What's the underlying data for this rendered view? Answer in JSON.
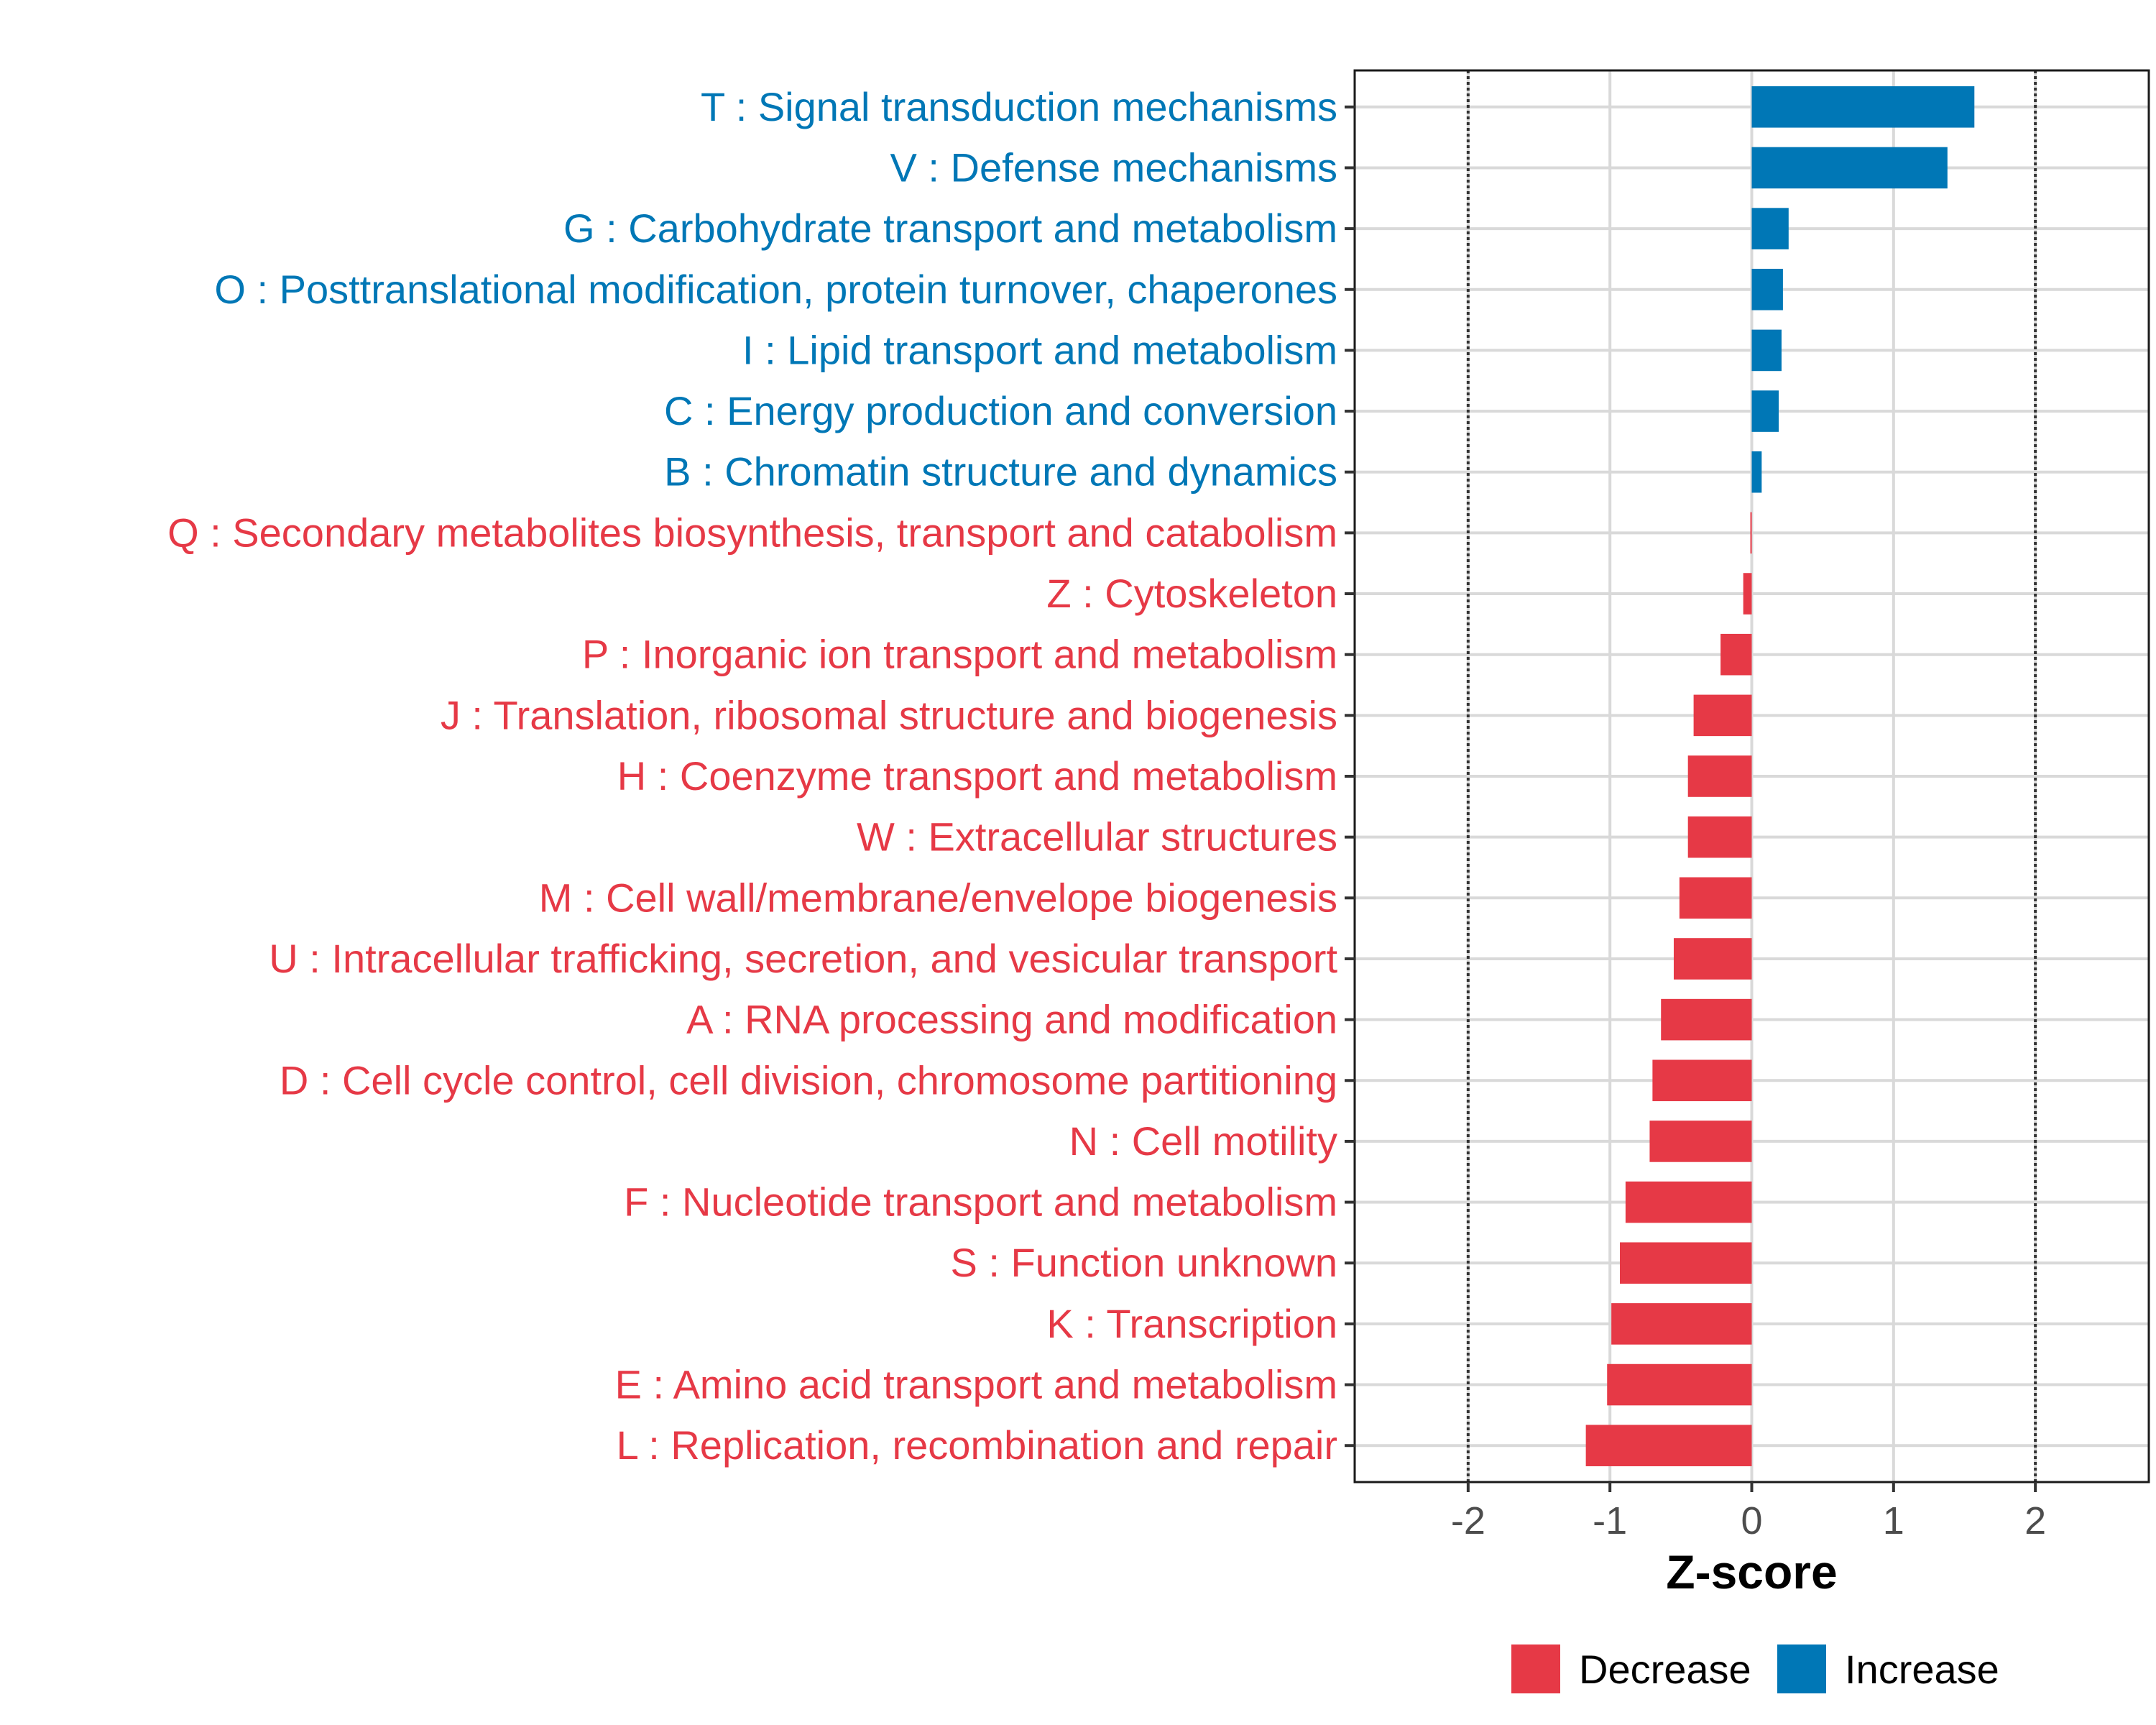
{
  "chart_data": {
    "type": "bar",
    "orientation": "horizontal",
    "xlabel": "Z-score",
    "xlim": [
      -2.8,
      2.8
    ],
    "xticks": [
      -2,
      -1,
      0,
      1,
      2
    ],
    "xtick_labels": [
      "-2",
      "-1",
      "0",
      "1",
      "2"
    ],
    "reference_lines": [
      -2,
      2
    ],
    "grid": true,
    "legend_position": "bottom",
    "colors": {
      "Decrease": "#e63946",
      "Increase": "#0077b6"
    },
    "legend": [
      {
        "name": "Decrease",
        "color": "#e63946"
      },
      {
        "name": "Increase",
        "color": "#0077b6"
      }
    ],
    "categories": [
      "T : Signal transduction mechanisms",
      "V : Defense mechanisms",
      "G : Carbohydrate transport and metabolism",
      "O : Posttranslational modification, protein turnover, chaperones",
      "I : Lipid transport and metabolism",
      "C : Energy production and conversion",
      "B : Chromatin structure and dynamics",
      "Q : Secondary metabolites biosynthesis, transport and catabolism",
      "Z : Cytoskeleton",
      "P : Inorganic ion transport and metabolism",
      "J : Translation, ribosomal structure and biogenesis",
      "H : Coenzyme transport and metabolism",
      "W : Extracellular structures",
      "M : Cell wall/membrane/envelope biogenesis",
      "U : Intracellular trafficking, secretion, and vesicular transport",
      "A : RNA processing and modification",
      "D : Cell cycle control, cell division, chromosome partitioning",
      "N : Cell motility",
      "F : Nucleotide transport and metabolism",
      "S : Function unknown",
      "K : Transcription",
      "E : Amino acid transport and metabolism",
      "L : Replication, recombination and repair"
    ],
    "values": [
      1.57,
      1.38,
      0.26,
      0.22,
      0.21,
      0.19,
      0.07,
      -0.01,
      -0.06,
      -0.22,
      -0.41,
      -0.45,
      -0.45,
      -0.51,
      -0.55,
      -0.64,
      -0.7,
      -0.72,
      -0.89,
      -0.93,
      -0.99,
      -1.02,
      -1.17
    ],
    "groups": [
      "Increase",
      "Increase",
      "Increase",
      "Increase",
      "Increase",
      "Increase",
      "Increase",
      "Decrease",
      "Decrease",
      "Decrease",
      "Decrease",
      "Decrease",
      "Decrease",
      "Decrease",
      "Decrease",
      "Decrease",
      "Decrease",
      "Decrease",
      "Decrease",
      "Decrease",
      "Decrease",
      "Decrease",
      "Decrease"
    ]
  }
}
